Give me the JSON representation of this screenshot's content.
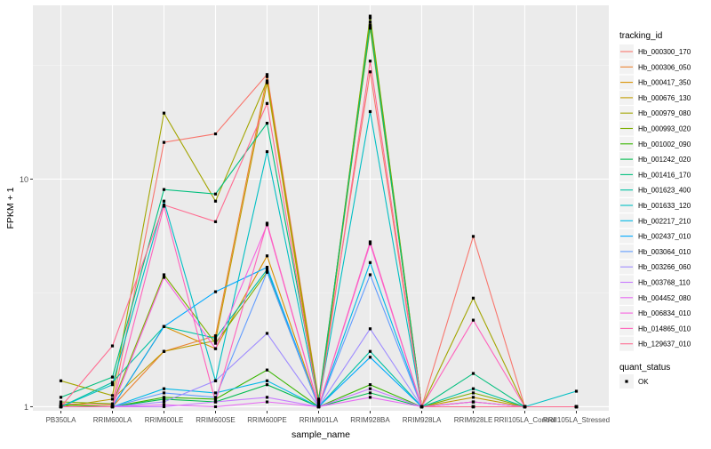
{
  "chart_data": {
    "type": "line",
    "title": "",
    "xlabel": "sample_name",
    "ylabel": "FPKM + 1",
    "y_scale": "log10",
    "ylim": [
      0.96,
      58
    ],
    "yticks": [
      1,
      10
    ],
    "ytick_labels": [
      "1",
      "10"
    ],
    "grid": true,
    "legend_position": "right",
    "categories": [
      "PB350LA",
      "RRIM600LA",
      "RRIM600LE",
      "RRIM600SE",
      "RRIM600PE",
      "RRIM901LA",
      "RRIM928BA",
      "RRIM928LA",
      "RRIM928LE",
      "RRII105LA_Control",
      "RRII105LA_Stressed"
    ],
    "legend_title": "tracking_id",
    "series": [
      {
        "name": "Hb_000300_170",
        "color": "#F8766D",
        "values": [
          1.03,
          1.02,
          14.5,
          15.8,
          28.8,
          1.08,
          29.6,
          1.0,
          5.6,
          1.0,
          1.0
        ]
      },
      {
        "name": "Hb_000306_050",
        "color": "#EA8331",
        "values": [
          1.0,
          1.0,
          1.75,
          2.05,
          28.2,
          1.02,
          51.0,
          1.0,
          1.0,
          1.0,
          1.0
        ]
      },
      {
        "name": "Hb_000417_350",
        "color": "#D89000",
        "values": [
          1.02,
          1.0,
          2.25,
          1.8,
          4.6,
          1.0,
          49.0,
          1.0,
          1.05,
          1.0,
          1.0
        ]
      },
      {
        "name": "Hb_000676_130",
        "color": "#C09B00",
        "values": [
          1.0,
          1.08,
          1.75,
          1.95,
          26.5,
          1.0,
          47.0,
          1.0,
          1.1,
          1.0,
          1.0
        ]
      },
      {
        "name": "Hb_000979_080",
        "color": "#A3A500",
        "values": [
          1.3,
          1.12,
          19.5,
          8.0,
          27.0,
          1.07,
          46.0,
          1.0,
          3.0,
          1.0,
          1.0
        ]
      },
      {
        "name": "Hb_000993_020",
        "color": "#7CAE00",
        "values": [
          1.05,
          1.03,
          3.8,
          1.9,
          3.9,
          1.0,
          52.0,
          1.0,
          1.15,
          1.0,
          1.0
        ]
      },
      {
        "name": "Hb_001002_090",
        "color": "#39B600",
        "values": [
          1.02,
          1.0,
          1.1,
          1.08,
          1.45,
          1.0,
          1.25,
          1.0,
          1.0,
          1.0,
          1.0
        ]
      },
      {
        "name": "Hb_001242_020",
        "color": "#00BB4E",
        "values": [
          1.0,
          1.0,
          1.08,
          1.05,
          1.25,
          1.0,
          1.15,
          1.0,
          1.0,
          1.0,
          1.0
        ]
      },
      {
        "name": "Hb_001416_170",
        "color": "#00BF7D",
        "values": [
          1.1,
          1.35,
          9.0,
          8.6,
          17.6,
          1.05,
          47.5,
          1.0,
          1.4,
          1.0,
          1.0
        ]
      },
      {
        "name": "Hb_001623_400",
        "color": "#00C1A3",
        "values": [
          1.0,
          1.28,
          2.25,
          2.0,
          4.0,
          1.0,
          1.75,
          1.0,
          1.2,
          1.0,
          1.0
        ]
      },
      {
        "name": "Hb_001633_120",
        "color": "#00BFC4",
        "values": [
          1.0,
          1.25,
          8.0,
          1.3,
          13.2,
          1.03,
          19.8,
          1.0,
          1.0,
          1.0,
          1.17
        ]
      },
      {
        "name": "Hb_002217_210",
        "color": "#00B8E7",
        "values": [
          1.0,
          1.0,
          1.2,
          1.15,
          1.3,
          1.0,
          4.3,
          1.0,
          1.0,
          1.0,
          1.0
        ]
      },
      {
        "name": "Hb_002437_010",
        "color": "#00A9FF",
        "values": [
          1.0,
          1.0,
          2.25,
          3.2,
          4.1,
          1.0,
          1.65,
          1.0,
          1.0,
          1.0,
          1.0
        ]
      },
      {
        "name": "Hb_003064_010",
        "color": "#619CFF",
        "values": [
          1.0,
          1.0,
          1.15,
          1.1,
          3.9,
          1.0,
          3.8,
          1.0,
          1.05,
          1.0,
          1.0
        ]
      },
      {
        "name": "Hb_003266_060",
        "color": "#9F8CFF",
        "values": [
          1.0,
          1.0,
          1.05,
          1.3,
          2.1,
          1.0,
          2.2,
          1.0,
          1.0,
          1.0,
          1.0
        ]
      },
      {
        "name": "Hb_003768_110",
        "color": "#C77CFF",
        "values": [
          1.0,
          1.0,
          1.0,
          1.05,
          1.1,
          1.0,
          1.2,
          1.0,
          1.0,
          1.0,
          1.0
        ]
      },
      {
        "name": "Hb_004452_080",
        "color": "#E76BF3",
        "values": [
          1.0,
          1.0,
          1.02,
          1.0,
          1.05,
          1.0,
          1.1,
          1.0,
          1.0,
          1.0,
          1.0
        ]
      },
      {
        "name": "Hb_006834_010",
        "color": "#F763E0",
        "values": [
          1.0,
          1.0,
          3.7,
          1.8,
          6.3,
          1.0,
          5.2,
          1.0,
          1.05,
          1.0,
          1.0
        ]
      },
      {
        "name": "Hb_014865_010",
        "color": "#FF62BC",
        "values": [
          1.0,
          1.0,
          7.6,
          1.05,
          6.4,
          1.0,
          5.3,
          1.0,
          2.4,
          1.0,
          1.0
        ]
      },
      {
        "name": "Hb_129637_010",
        "color": "#FF6C91",
        "values": [
          1.0,
          1.85,
          7.7,
          6.5,
          21.5,
          1.0,
          33.0,
          1.0,
          1.0,
          1.0,
          1.0
        ]
      }
    ],
    "shape_legend": {
      "title": "quant_status",
      "items": [
        {
          "label": "OK",
          "shape": "square"
        }
      ]
    }
  }
}
